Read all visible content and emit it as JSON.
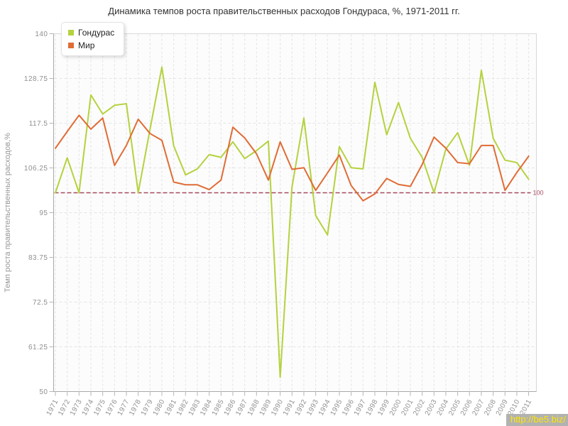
{
  "title": "Динамика темпов роста правительственных расходов Гондураса, %, 1971-2011 гг.",
  "watermark": "http://be5.biz/",
  "legend": {
    "position": "top-left",
    "items": [
      "Гондурас",
      "Мир"
    ]
  },
  "chart_data": {
    "type": "line",
    "title": "Динамика темпов роста правительственных расходов Гондураса, %, 1971-2011 гг.",
    "xlabel": "",
    "ylabel": "Темп роста правительственных расходов,%",
    "ylim": [
      50,
      140
    ],
    "yticks": [
      50,
      61.25,
      72.5,
      83.75,
      95,
      106.25,
      117.5,
      128.75,
      140
    ],
    "grid": true,
    "legend_position": "top-left",
    "plotline": {
      "value": 100,
      "label": "100",
      "color": "#a64a5e"
    },
    "x": [
      1971,
      1972,
      1973,
      1974,
      1975,
      1976,
      1977,
      1978,
      1979,
      1980,
      1981,
      1982,
      1983,
      1984,
      1985,
      1986,
      1987,
      1988,
      1989,
      1990,
      1991,
      1992,
      1993,
      1994,
      1995,
      1996,
      1997,
      1998,
      1999,
      2000,
      2001,
      2002,
      2003,
      2004,
      2005,
      2006,
      2007,
      2008,
      2009,
      2010,
      2011
    ],
    "series": [
      {
        "name": "Гондурас",
        "color": "#b4d23e",
        "values": [
          100,
          108.8,
          100,
          124.6,
          119.8,
          122,
          122.4,
          100,
          116,
          131.6,
          111.8,
          104.5,
          106,
          109.6,
          108.9,
          112.8,
          108.6,
          110.6,
          113,
          53.6,
          101.5,
          118.8,
          94.3,
          89.4,
          111.6,
          106.3,
          106,
          127.8,
          114.6,
          122.7,
          113.7,
          108.9,
          100,
          111,
          115.1,
          106.9,
          130.8,
          113.7,
          108.2,
          107.6,
          103.4
        ]
      },
      {
        "name": "Мир",
        "color": "#e06c35",
        "values": [
          111.2,
          115.4,
          119.5,
          116,
          118.8,
          106.9,
          111.9,
          118.5,
          114.9,
          113.2,
          102.7,
          102,
          102,
          100.8,
          103.2,
          116.5,
          113.8,
          109.8,
          103.2,
          112.8,
          105.9,
          106.3,
          100.6,
          105,
          109.5,
          101.8,
          98,
          99.7,
          103.6,
          102.1,
          101.6,
          107.1,
          114,
          111.2,
          107.6,
          107.3,
          111.9,
          111.9,
          100.6,
          105.1,
          109.2
        ]
      }
    ]
  }
}
